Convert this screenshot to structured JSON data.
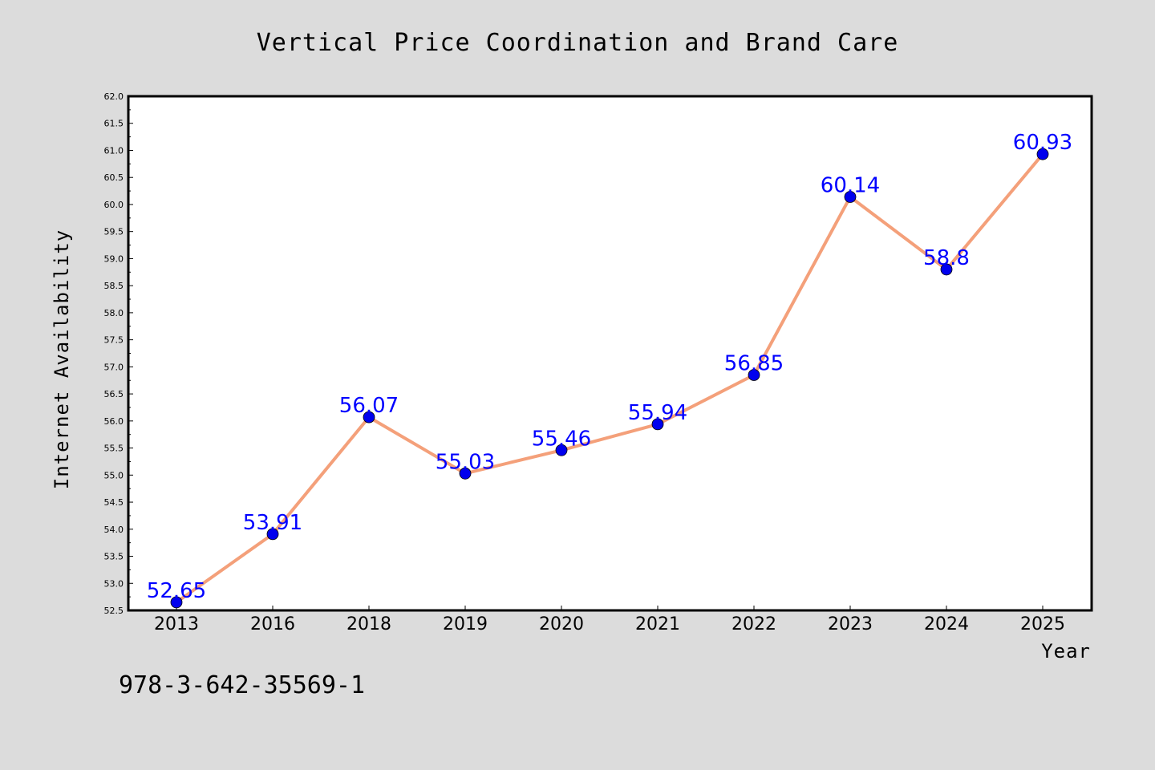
{
  "chart_data": {
    "type": "line",
    "title": "Vertical Price Coordination and Brand Care",
    "xlabel": "Year",
    "ylabel": "Internet Availability",
    "categories": [
      "2013",
      "2016",
      "2018",
      "2019",
      "2020",
      "2021",
      "2022",
      "2023",
      "2024",
      "2025"
    ],
    "series": [
      {
        "values": [
          52.65,
          53.91,
          56.07,
          55.03,
          55.46,
          55.94,
          56.85,
          60.14,
          58.8,
          60.93
        ],
        "labels": [
          "52.65",
          "53.91",
          "56.07",
          "55.03",
          "55.46",
          "55.94",
          "56.85",
          "60.14",
          "58.8",
          "60.93"
        ]
      }
    ],
    "ylim": [
      52.5,
      62.0
    ],
    "yticks": [
      "52.5",
      "53.0",
      "53.5",
      "54.0",
      "54.5",
      "55.0",
      "55.5",
      "56.0",
      "56.5",
      "57.0",
      "57.5",
      "58.0",
      "58.5",
      "59.0",
      "59.5",
      "60.0",
      "60.5",
      "61.0",
      "61.5",
      "62.0"
    ],
    "grid": false,
    "line_color": "#f4a07a",
    "marker_color": "#0000ee",
    "label_color": "#0000ff"
  },
  "footer": {
    "isbn": "978-3-642-35569-1"
  }
}
